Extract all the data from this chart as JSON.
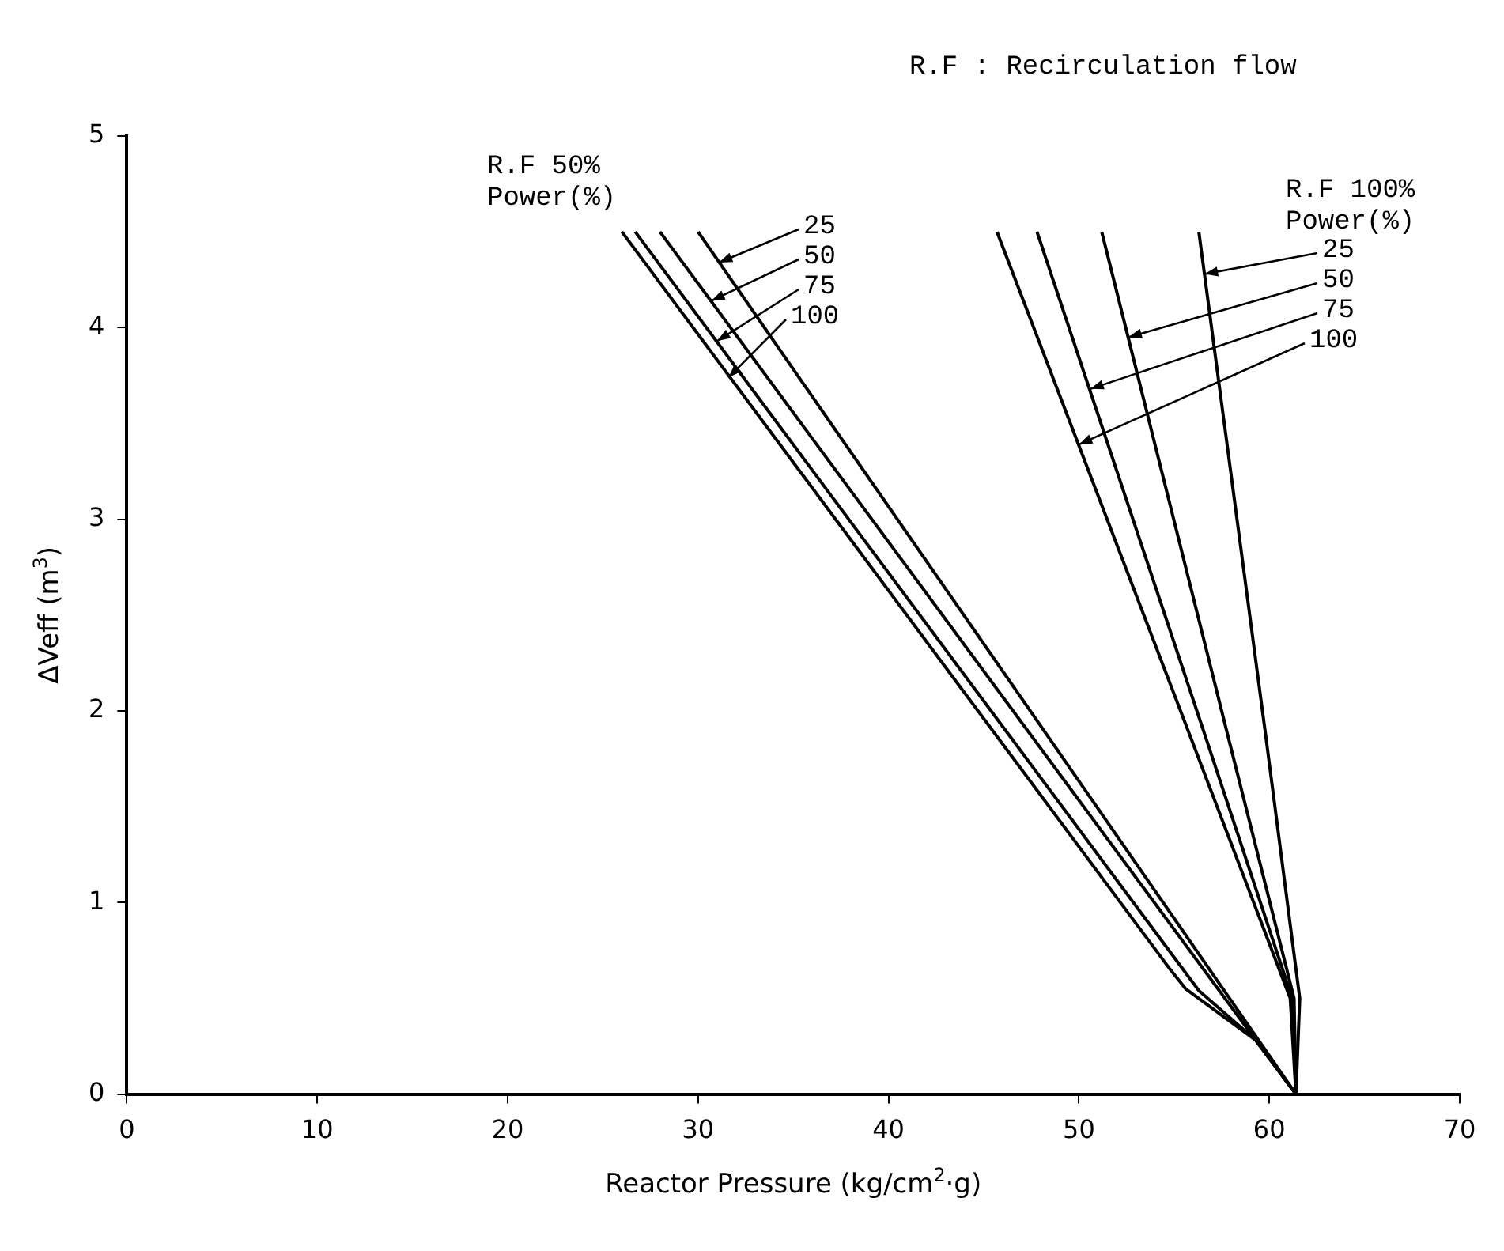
{
  "chart_data": {
    "type": "line",
    "xlabel": "Reactor Pressure (kg/cm$^{2}$·g)",
    "ylabel": "ΔVeff (m$^{3}$)",
    "xlim": [
      0,
      70
    ],
    "xticks": [
      0,
      10,
      20,
      30,
      40,
      50,
      60,
      70
    ],
    "ylim": [
      0,
      5
    ],
    "yticks": [
      0,
      1,
      2,
      3,
      4,
      5
    ],
    "marker": "none",
    "line_style": "solid",
    "series": [
      {
        "color": "#000000",
        "x": [
          30.0,
          61.4
        ],
        "values": [
          4.5,
          0
        ]
      },
      {
        "color": "#000000",
        "x": [
          28.0,
          59.3,
          61.4
        ],
        "values": [
          4.5,
          0.28,
          0
        ]
      },
      {
        "color": "#000000",
        "x": [
          26.7,
          56.3,
          59.3,
          61.4
        ],
        "values": [
          4.5,
          0.54,
          0.28,
          0
        ]
      },
      {
        "color": "#000000",
        "x": [
          26.0,
          54.8,
          55.6,
          59.3,
          61.4
        ],
        "values": [
          4.5,
          0.65,
          0.55,
          0.28,
          0
        ]
      },
      {
        "color": "#000000",
        "x": [
          56.3,
          59.8,
          61.6,
          61.4
        ],
        "values": [
          4.5,
          1.88,
          0.5,
          0
        ]
      },
      {
        "color": "#000000",
        "x": [
          51.2,
          57.8,
          61.3,
          61.4
        ],
        "values": [
          4.5,
          1.88,
          0.5,
          0
        ]
      },
      {
        "color": "#000000",
        "x": [
          47.8,
          56.6,
          61.2,
          61.4
        ],
        "values": [
          4.5,
          1.88,
          0.5,
          0
        ]
      },
      {
        "color": "#000000",
        "x": [
          45.7,
          55.8,
          61.1,
          61.4
        ],
        "values": [
          4.5,
          1.88,
          0.5,
          0
        ]
      }
    ],
    "title": "R.F : Recirculation flow",
    "annotations": [
      "R.F 50%",
      "Power(%)",
      {
        "text": "25",
        "x": 31.1,
        "y": 4.34
      },
      {
        "text": "50",
        "x": 30.7,
        "y": 4.14
      },
      {
        "text": "75",
        "x": 31.0,
        "y": 3.93
      },
      {
        "text": "100",
        "x": 31.6,
        "y": 3.74
      },
      "R.F 100%",
      "Power(%)",
      {
        "text": "25",
        "x": 56.6,
        "y": 4.28
      },
      {
        "text": "50",
        "x": 52.6,
        "y": 3.95
      },
      {
        "text": "75",
        "x": 50.6,
        "y": 3.68
      },
      {
        "text": "100",
        "x": 50.0,
        "y": 3.39
      }
    ]
  }
}
